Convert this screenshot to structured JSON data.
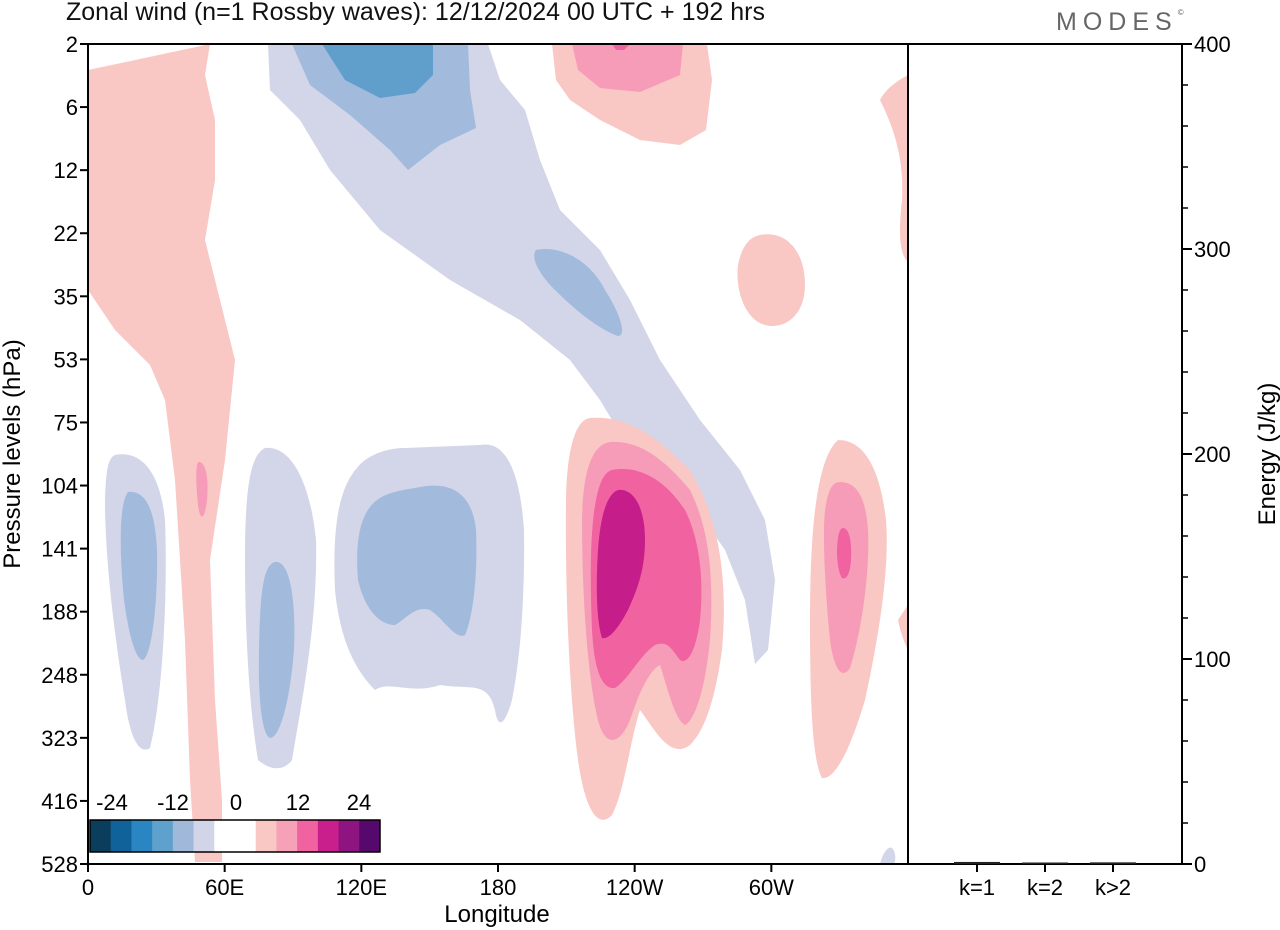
{
  "header": {
    "title": "Zonal wind (n=1 Rossby waves):  12/12/2024  00 UTC  + 192 hrs",
    "brand": "MODES"
  },
  "chart_data": [
    {
      "type": "heatmap",
      "title": "Zonal wind (n=1 Rossby waves):  12/12/2024  00 UTC  + 192 hrs",
      "xlabel": "Longitude",
      "ylabel": "Pressure levels (hPa)",
      "x_ticks": [
        "0",
        "60E",
        "120E",
        "180",
        "120W",
        "60W"
      ],
      "x_tick_lon": [
        0,
        60,
        120,
        180,
        240,
        300
      ],
      "xlim": [
        0,
        360
      ],
      "y_ticks": [
        "2",
        "6",
        "12",
        "22",
        "35",
        "53",
        "75",
        "104",
        "141",
        "188",
        "248",
        "323",
        "416",
        "528"
      ],
      "y_axis": "pressure levels, top to bottom",
      "colorbar": {
        "labels": [
          "-24",
          "-12",
          "0",
          "12",
          "24"
        ],
        "colors": [
          "#0b3d5c",
          "#10639a",
          "#2a86c2",
          "#5ea1cc",
          "#a0b9da",
          "#d2d4e8",
          "#ffffff",
          "#ffffff",
          "#f9c8c4",
          "#f7a1b9",
          "#f062a0",
          "#c81f8c",
          "#8e1481",
          "#57086c"
        ]
      },
      "contour_colors": {
        "neg1": "#d3d5e8",
        "neg2": "#a2badb",
        "neg3": "#609fcc",
        "pos1": "#f9c8c4",
        "pos2": "#f79cb8",
        "pos3": "#f062a0",
        "pos4": "#c51e8a"
      }
    },
    {
      "type": "bar",
      "ylabel": "Energy (J/kg)",
      "categories": [
        "k=1",
        "k=2",
        "k>2"
      ],
      "values": [
        1,
        0.5,
        0.8
      ],
      "ylim": [
        0,
        400
      ],
      "y_ticks": [
        "0",
        "100",
        "200",
        "300",
        "400"
      ]
    }
  ]
}
